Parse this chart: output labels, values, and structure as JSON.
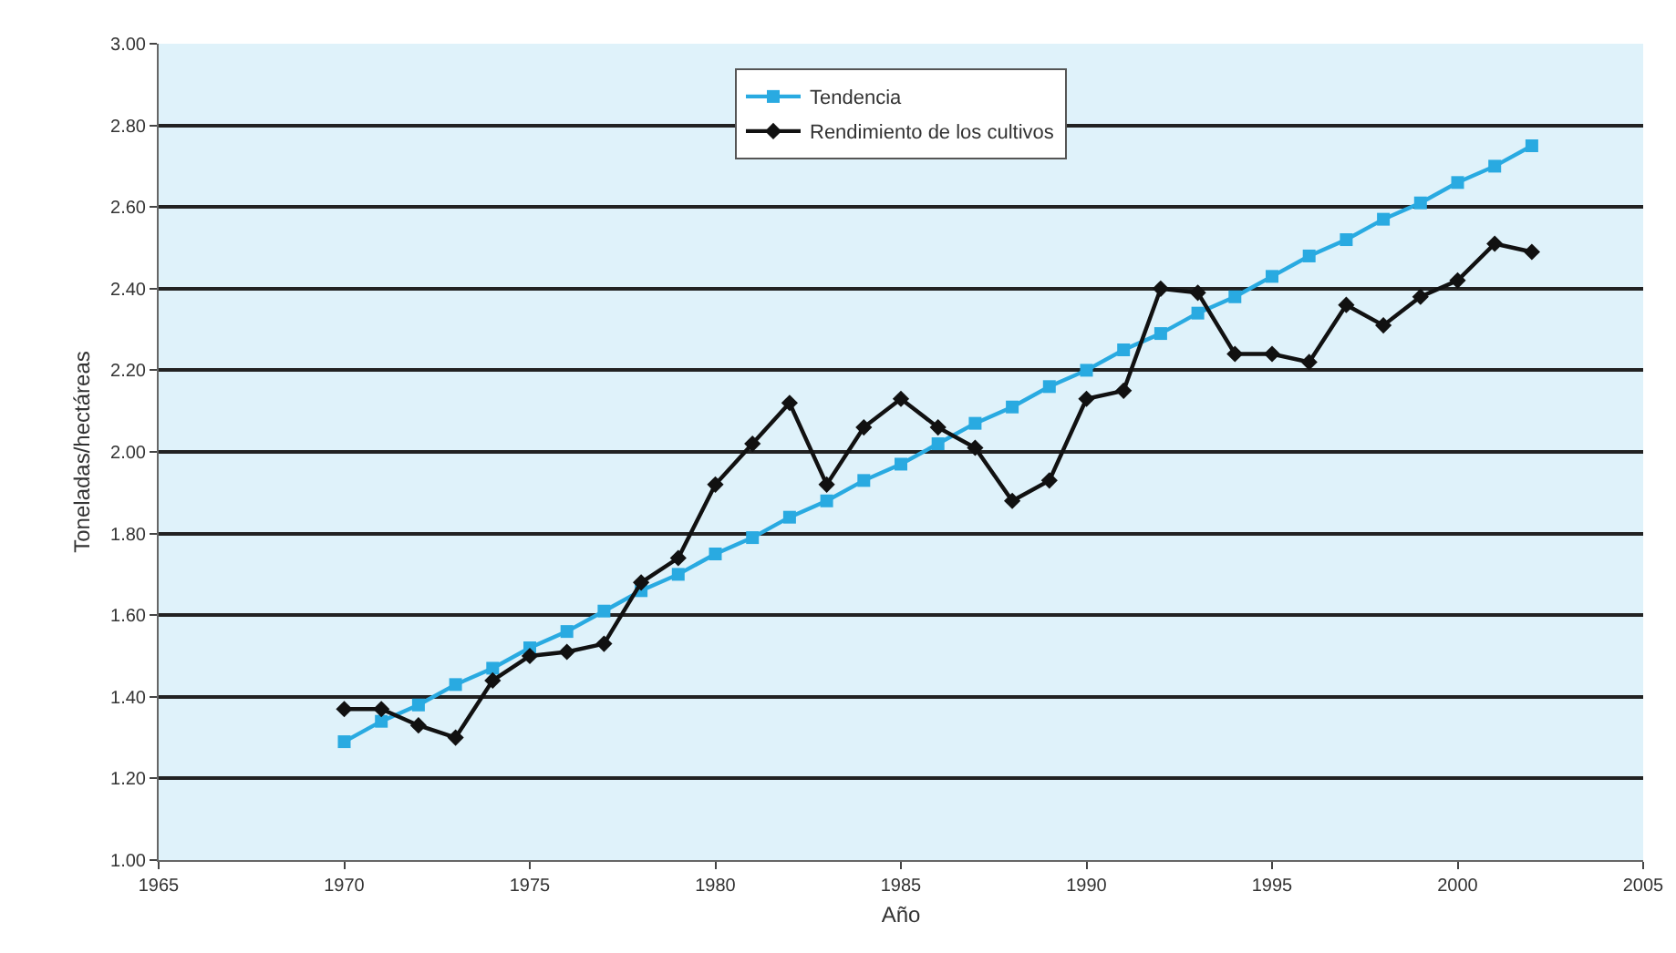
{
  "chart_data": {
    "type": "line",
    "xlabel": "Año",
    "ylabel": "Toneladas/hectáreas",
    "x": [
      1970,
      1971,
      1972,
      1973,
      1974,
      1975,
      1976,
      1977,
      1978,
      1979,
      1980,
      1981,
      1982,
      1983,
      1984,
      1985,
      1986,
      1987,
      1988,
      1989,
      1990,
      1991,
      1992,
      1993,
      1994,
      1995,
      1996,
      1997,
      1998,
      1999,
      2000,
      2001,
      2002
    ],
    "series": [
      {
        "name": "Tendencia",
        "color": "#29aae1",
        "marker": "square",
        "values": [
          1.29,
          1.34,
          1.38,
          1.43,
          1.47,
          1.52,
          1.56,
          1.61,
          1.66,
          1.7,
          1.75,
          1.79,
          1.84,
          1.88,
          1.93,
          1.97,
          2.02,
          2.07,
          2.11,
          2.16,
          2.2,
          2.25,
          2.29,
          2.34,
          2.38,
          2.43,
          2.48,
          2.52,
          2.57,
          2.61,
          2.66,
          2.7,
          2.75
        ]
      },
      {
        "name": "Rendimiento de los cultivos",
        "color": "#111111",
        "marker": "diamond",
        "values": [
          1.37,
          1.37,
          1.33,
          1.3,
          1.44,
          1.5,
          1.51,
          1.53,
          1.68,
          1.74,
          1.92,
          2.02,
          2.12,
          1.92,
          2.06,
          2.13,
          2.06,
          2.01,
          1.88,
          1.93,
          2.13,
          2.15,
          2.4,
          2.39,
          2.24,
          2.24,
          2.22,
          2.36,
          2.31,
          2.38,
          2.42,
          2.51,
          2.49
        ]
      }
    ],
    "xlim": [
      1965,
      2005
    ],
    "xticks": [
      1965,
      1970,
      1975,
      1980,
      1985,
      1990,
      1995,
      2000,
      2005
    ],
    "ylim": [
      1,
      3
    ],
    "yticks": [
      {
        "value": 1,
        "label": "1.00"
      },
      {
        "value": 1.2,
        "label": "1.20"
      },
      {
        "value": 1.4,
        "label": "1.40"
      },
      {
        "value": 1.6,
        "label": "1.60"
      },
      {
        "value": 1.8,
        "label": "1.80"
      },
      {
        "value": 2,
        "label": "2.00"
      },
      {
        "value": 2.2,
        "label": "2.20"
      },
      {
        "value": 2.4,
        "label": "2.40"
      },
      {
        "value": 2.6,
        "label": "2.60"
      },
      {
        "value": 2.8,
        "label": "2.80"
      },
      {
        "value": 3,
        "label": "3.00"
      }
    ],
    "grid": "y",
    "legend": "top",
    "line_style": "solid"
  }
}
